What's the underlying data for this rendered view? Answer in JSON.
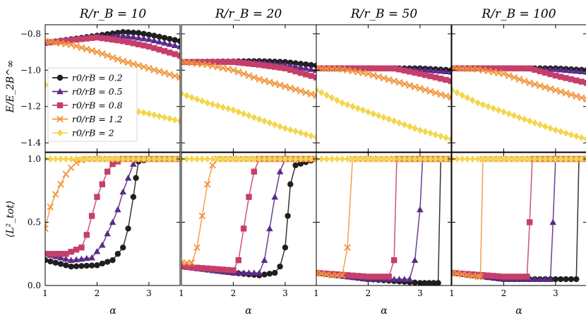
{
  "figure": {
    "panel_titles": [
      "R/r_B = 10",
      "R/r_B = 20",
      "R/r_B = 50",
      "R/r_B = 100"
    ],
    "top_ylabel": "E/E_2B^∞",
    "bottom_ylabel": "⟨L²_tot⟩",
    "xlabel": "α"
  },
  "legend": {
    "placement": "inside-left of top-left panel",
    "entries": [
      {
        "label": "r0/rB = 0.2",
        "color": "#1f1f1f",
        "marker": "circle"
      },
      {
        "label": "r0/rB = 0.5",
        "color": "#5b2a86",
        "marker": "triangle"
      },
      {
        "label": "r0/rB = 0.8",
        "color": "#c53f6a",
        "marker": "square"
      },
      {
        "label": "r0/rB = 1.2",
        "color": "#f2953b",
        "marker": "x"
      },
      {
        "label": "r0/rB = 2",
        "color": "#f4d64e",
        "marker": "diamond"
      }
    ]
  },
  "chart_data": [
    {
      "type": "line",
      "panel": "top-1",
      "title": "R/r_B = 10",
      "ylabel": "E/E_2B^∞",
      "xlim": [
        1,
        3.6
      ],
      "ylim": [
        -1.45,
        -0.75
      ],
      "xticks": [
        1,
        2,
        3
      ],
      "yticks": [
        -0.8,
        -1.0,
        -1.2,
        -1.4
      ],
      "ytick_labels": [
        "−0.8",
        "−1.0",
        "−1.2",
        "−1.4"
      ],
      "series": [
        {
          "name": "r0/rB = 0.2",
          "x": [
            1.0,
            1.5,
            2.0,
            2.5,
            2.8,
            3.1,
            3.6
          ],
          "y": [
            -0.85,
            -0.83,
            -0.81,
            -0.79,
            -0.795,
            -0.81,
            -0.84
          ]
        },
        {
          "name": "r0/rB = 0.5",
          "x": [
            1.0,
            1.5,
            2.0,
            2.5,
            3.0,
            3.6
          ],
          "y": [
            -0.85,
            -0.83,
            -0.815,
            -0.81,
            -0.83,
            -0.87
          ]
        },
        {
          "name": "r0/rB = 0.8",
          "x": [
            1.0,
            1.5,
            2.0,
            2.5,
            3.0,
            3.6
          ],
          "y": [
            -0.85,
            -0.835,
            -0.82,
            -0.84,
            -0.87,
            -0.92
          ]
        },
        {
          "name": "r0/rB = 1.2",
          "x": [
            1.0,
            1.5,
            2.0,
            2.5,
            3.0,
            3.6
          ],
          "y": [
            -0.84,
            -0.86,
            -0.9,
            -0.95,
            -0.99,
            -1.04
          ]
        },
        {
          "name": "r0/rB = 2",
          "x": [
            1.0,
            1.5,
            2.0,
            2.5,
            3.0,
            3.6
          ],
          "y": [
            -1.08,
            -1.15,
            -1.18,
            -1.21,
            -1.24,
            -1.28
          ]
        }
      ]
    },
    {
      "type": "line",
      "panel": "top-2",
      "title": "R/r_B = 20",
      "xlim": [
        1,
        3.6
      ],
      "ylim": [
        -1.45,
        -0.75
      ],
      "series": [
        {
          "name": "r0/rB = 0.2",
          "x": [
            1.0,
            2.0,
            2.5,
            3.0,
            3.6
          ],
          "y": [
            -0.955,
            -0.952,
            -0.95,
            -0.955,
            -0.975
          ]
        },
        {
          "name": "r0/rB = 0.5",
          "x": [
            1.0,
            2.0,
            2.5,
            3.0,
            3.6
          ],
          "y": [
            -0.955,
            -0.952,
            -0.955,
            -0.97,
            -1.0
          ]
        },
        {
          "name": "r0/rB = 0.8",
          "x": [
            1.0,
            2.0,
            2.5,
            3.0,
            3.6
          ],
          "y": [
            -0.955,
            -0.955,
            -0.97,
            -0.99,
            -1.04
          ]
        },
        {
          "name": "r0/rB = 1.2",
          "x": [
            1.0,
            1.5,
            2.0,
            2.5,
            3.0,
            3.6
          ],
          "y": [
            -0.955,
            -0.97,
            -1.0,
            -1.05,
            -1.09,
            -1.14
          ]
        },
        {
          "name": "r0/rB = 2",
          "x": [
            1.0,
            1.5,
            2.0,
            2.5,
            3.0,
            3.6
          ],
          "y": [
            -1.13,
            -1.18,
            -1.22,
            -1.27,
            -1.32,
            -1.37
          ]
        }
      ]
    },
    {
      "type": "line",
      "panel": "top-3",
      "title": "R/r_B = 50",
      "xlim": [
        1,
        3.6
      ],
      "ylim": [
        -1.45,
        -0.75
      ],
      "series": [
        {
          "name": "r0/rB = 0.2",
          "x": [
            1.0,
            2.0,
            3.0,
            3.6
          ],
          "y": [
            -0.99,
            -0.99,
            -0.99,
            -1.0
          ]
        },
        {
          "name": "r0/rB = 0.5",
          "x": [
            1.0,
            2.0,
            3.0,
            3.6
          ],
          "y": [
            -0.99,
            -0.99,
            -0.995,
            -1.01
          ]
        },
        {
          "name": "r0/rB = 0.8",
          "x": [
            1.0,
            2.0,
            2.5,
            3.0,
            3.6
          ],
          "y": [
            -0.99,
            -0.99,
            -0.99,
            -1.02,
            -1.06
          ]
        },
        {
          "name": "r0/rB = 1.2",
          "x": [
            1.0,
            1.5,
            2.0,
            2.5,
            3.0,
            3.6
          ],
          "y": [
            -0.99,
            -0.995,
            -1.02,
            -1.06,
            -1.1,
            -1.15
          ]
        },
        {
          "name": "r0/rB = 2",
          "x": [
            1.0,
            1.5,
            2.0,
            2.5,
            3.0,
            3.6
          ],
          "y": [
            -1.11,
            -1.18,
            -1.23,
            -1.28,
            -1.33,
            -1.38
          ]
        }
      ]
    },
    {
      "type": "line",
      "panel": "top-4",
      "title": "R/r_B = 100",
      "xlim": [
        1,
        3.6
      ],
      "ylim": [
        -1.45,
        -0.75
      ],
      "series": [
        {
          "name": "r0/rB = 0.2",
          "x": [
            1.0,
            2.0,
            3.0,
            3.6
          ],
          "y": [
            -0.99,
            -0.99,
            -0.99,
            -1.0
          ]
        },
        {
          "name": "r0/rB = 0.5",
          "x": [
            1.0,
            2.0,
            3.0,
            3.6
          ],
          "y": [
            -0.99,
            -0.99,
            -0.995,
            -1.01
          ]
        },
        {
          "name": "r0/rB = 0.8",
          "x": [
            1.0,
            2.0,
            2.5,
            3.0,
            3.6
          ],
          "y": [
            -0.99,
            -0.99,
            -0.99,
            -1.03,
            -1.07
          ]
        },
        {
          "name": "r0/rB = 1.2",
          "x": [
            1.0,
            1.5,
            2.0,
            2.5,
            3.0,
            3.6
          ],
          "y": [
            -0.99,
            -0.995,
            -1.02,
            -1.07,
            -1.11,
            -1.16
          ]
        },
        {
          "name": "r0/rB = 2",
          "x": [
            1.0,
            1.5,
            2.0,
            2.5,
            3.0,
            3.6
          ],
          "y": [
            -1.11,
            -1.18,
            -1.23,
            -1.28,
            -1.33,
            -1.38
          ]
        }
      ]
    },
    {
      "type": "line",
      "panel": "bottom-1",
      "ylabel": "⟨L²_tot⟩",
      "xlabel": "α",
      "xlim": [
        1,
        3.6
      ],
      "ylim": [
        0.0,
        1.05
      ],
      "xticks": [
        1,
        2,
        3
      ],
      "yticks": [
        0.0,
        0.5,
        1.0
      ],
      "ytick_labels": [
        "0.0",
        "0.5",
        "1.0"
      ],
      "series": [
        {
          "name": "r0/rB = 0.2",
          "x": [
            1.0,
            1.5,
            2.0,
            2.3,
            2.5,
            2.6,
            2.7,
            2.75,
            2.8,
            3.0,
            3.6
          ],
          "y": [
            0.2,
            0.15,
            0.16,
            0.2,
            0.3,
            0.45,
            0.7,
            0.85,
            0.98,
            1.0,
            1.0
          ]
        },
        {
          "name": "r0/rB = 0.5",
          "x": [
            1.0,
            1.5,
            1.9,
            2.1,
            2.3,
            2.4,
            2.5,
            2.6,
            2.7,
            2.8,
            3.6
          ],
          "y": [
            0.25,
            0.2,
            0.22,
            0.32,
            0.5,
            0.6,
            0.74,
            0.85,
            0.96,
            1.0,
            1.0
          ]
        },
        {
          "name": "r0/rB = 0.8",
          "x": [
            1.0,
            1.4,
            1.7,
            1.8,
            1.9,
            2.0,
            2.1,
            2.2,
            2.3,
            2.5,
            3.6
          ],
          "y": [
            0.25,
            0.25,
            0.3,
            0.4,
            0.55,
            0.7,
            0.8,
            0.9,
            0.96,
            1.0,
            1.0
          ]
        },
        {
          "name": "r0/rB = 1.2",
          "x": [
            1.0,
            1.1,
            1.2,
            1.3,
            1.4,
            1.5,
            1.6,
            1.7,
            1.8,
            2.0,
            3.6
          ],
          "y": [
            0.45,
            0.62,
            0.72,
            0.8,
            0.88,
            0.93,
            0.97,
            0.99,
            1.0,
            1.0,
            1.0
          ]
        },
        {
          "name": "r0/rB = 2",
          "x": [
            1.0,
            1.5,
            2.0,
            2.5,
            3.0,
            3.6
          ],
          "y": [
            1.0,
            1.0,
            1.0,
            1.0,
            1.0,
            1.0
          ]
        }
      ]
    },
    {
      "type": "line",
      "panel": "bottom-2",
      "xlabel": "α",
      "xlim": [
        1,
        3.6
      ],
      "ylim": [
        0.0,
        1.05
      ],
      "series": [
        {
          "name": "r0/rB = 0.2",
          "x": [
            1.0,
            2.0,
            2.5,
            2.8,
            2.9,
            3.0,
            3.05,
            3.1,
            3.2,
            3.6
          ],
          "y": [
            0.15,
            0.1,
            0.08,
            0.1,
            0.15,
            0.3,
            0.55,
            0.8,
            0.95,
            1.0
          ]
        },
        {
          "name": "r0/rB = 0.5",
          "x": [
            1.0,
            2.0,
            2.5,
            2.6,
            2.7,
            2.8,
            2.9,
            3.0,
            3.6
          ],
          "y": [
            0.15,
            0.1,
            0.1,
            0.2,
            0.45,
            0.7,
            0.9,
            1.0,
            1.0
          ]
        },
        {
          "name": "r0/rB = 0.8",
          "x": [
            1.0,
            2.0,
            2.1,
            2.2,
            2.3,
            2.4,
            2.5,
            3.6
          ],
          "y": [
            0.15,
            0.12,
            0.2,
            0.45,
            0.7,
            0.9,
            1.0,
            1.0
          ]
        },
        {
          "name": "r0/rB = 1.2",
          "x": [
            1.0,
            1.2,
            1.3,
            1.4,
            1.5,
            1.6,
            1.7,
            3.6
          ],
          "y": [
            0.18,
            0.18,
            0.3,
            0.55,
            0.8,
            0.95,
            1.0,
            1.0
          ]
        },
        {
          "name": "r0/rB = 2",
          "x": [
            1.0,
            1.5,
            2.0,
            2.5,
            3.0,
            3.6
          ],
          "y": [
            1.0,
            1.0,
            1.0,
            1.0,
            1.0,
            1.0
          ]
        }
      ]
    },
    {
      "type": "line",
      "panel": "bottom-3",
      "xlabel": "α",
      "xlim": [
        1,
        3.6
      ],
      "ylim": [
        0.0,
        1.05
      ],
      "series": [
        {
          "name": "r0/rB = 0.2",
          "x": [
            1.0,
            2.0,
            3.0,
            3.35,
            3.4,
            3.6
          ],
          "y": [
            0.1,
            0.05,
            0.02,
            0.02,
            1.0,
            1.0
          ]
        },
        {
          "name": "r0/rB = 0.5",
          "x": [
            1.0,
            2.0,
            2.8,
            2.9,
            3.0,
            3.05,
            3.6
          ],
          "y": [
            0.1,
            0.05,
            0.05,
            0.2,
            0.6,
            1.0,
            1.0
          ]
        },
        {
          "name": "r0/rB = 0.8",
          "x": [
            1.0,
            2.0,
            2.4,
            2.5,
            2.55,
            3.6
          ],
          "y": [
            0.1,
            0.07,
            0.07,
            0.2,
            1.0,
            1.0
          ]
        },
        {
          "name": "r0/rB = 1.2",
          "x": [
            1.0,
            1.3,
            1.5,
            1.6,
            1.7,
            3.6
          ],
          "y": [
            0.1,
            0.08,
            0.08,
            0.3,
            1.0,
            1.0
          ]
        },
        {
          "name": "r0/rB = 2",
          "x": [
            1.0,
            1.5,
            2.0,
            2.5,
            3.0,
            3.6
          ],
          "y": [
            1.0,
            1.0,
            1.0,
            1.0,
            1.0,
            1.0
          ]
        }
      ]
    },
    {
      "type": "line",
      "panel": "bottom-4",
      "xlabel": "α",
      "xlim": [
        1,
        3.6
      ],
      "ylim": [
        0.0,
        1.05
      ],
      "series": [
        {
          "name": "r0/rB = 0.2",
          "x": [
            1.0,
            2.0,
            3.0,
            3.4,
            3.45,
            3.6
          ],
          "y": [
            0.1,
            0.05,
            0.05,
            0.05,
            1.0,
            1.0
          ]
        },
        {
          "name": "r0/rB = 0.5",
          "x": [
            1.0,
            2.0,
            2.9,
            2.95,
            3.0,
            3.6
          ],
          "y": [
            0.1,
            0.05,
            0.05,
            0.5,
            1.0,
            1.0
          ]
        },
        {
          "name": "r0/rB = 0.8",
          "x": [
            1.0,
            2.0,
            2.45,
            2.5,
            2.55,
            3.6
          ],
          "y": [
            0.1,
            0.07,
            0.07,
            0.5,
            1.0,
            1.0
          ]
        },
        {
          "name": "r0/rB = 1.2",
          "x": [
            1.0,
            1.5,
            1.55,
            1.6,
            3.6
          ],
          "y": [
            0.1,
            0.07,
            0.07,
            1.0,
            1.0
          ]
        },
        {
          "name": "r0/rB = 2",
          "x": [
            1.0,
            1.5,
            2.0,
            2.5,
            3.0,
            3.6
          ],
          "y": [
            1.0,
            1.0,
            1.0,
            1.0,
            1.0,
            1.0
          ]
        }
      ]
    }
  ]
}
